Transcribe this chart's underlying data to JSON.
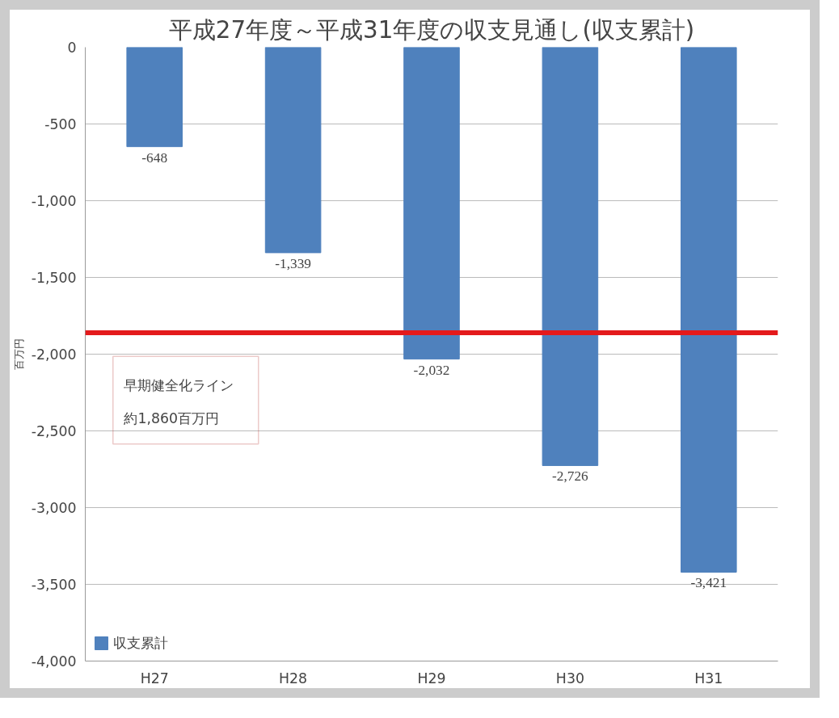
{
  "chart_data": {
    "type": "bar",
    "title": "平成27年度～平成31年度の収支見通し(収支累計)",
    "ylabel": "百万円",
    "categories": [
      "H27",
      "H28",
      "H29",
      "H30",
      "H31"
    ],
    "series": [
      {
        "name": "収支累計",
        "color": "#4f81bd",
        "values": [
          -648,
          -1339,
          -2032,
          -2726,
          -3421
        ],
        "value_labels": [
          "-648",
          "-1,339",
          "-2,032",
          "-2,726",
          "-3,421"
        ]
      }
    ],
    "ylim": [
      -4000,
      0
    ],
    "yticks": [
      0,
      {
        "value": -500,
        "label": "-500"
      },
      {
        "value": -1000,
        "label": "-1,000"
      },
      {
        "value": -1500,
        "label": "-1,500"
      },
      {
        "value": -2000,
        "label": "-2,000"
      },
      {
        "value": -2500,
        "label": "-2,500"
      },
      {
        "value": -3000,
        "label": "-3,000"
      },
      {
        "value": -3500,
        "label": "-3,500"
      },
      {
        "value": -4000,
        "label": "-4,000"
      }
    ],
    "ref_lines": [
      {
        "axis": "y",
        "value": -1860,
        "color": "#e41a1c"
      }
    ],
    "annotations": [
      "早期健全化ライン",
      "約1,860百万円"
    ],
    "grid": "y",
    "legend": "bottom left"
  }
}
